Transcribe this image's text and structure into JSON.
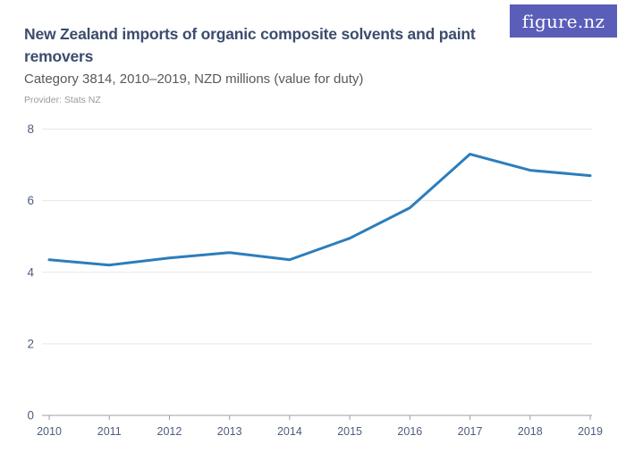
{
  "header": {
    "title": "New Zealand imports of organic composite solvents and paint removers",
    "subtitle": "Category 3814, 2010–2019, NZD millions (value for duty)",
    "provider": "Provider: Stats NZ",
    "logo_text": "figure.nz"
  },
  "colors": {
    "title_text": "#3c4c6d",
    "subtitle_text": "#595959",
    "provider_text": "#9a9a9a",
    "logo_bg": "#5a5eb9",
    "logo_text": "#ffffff",
    "line": "#2d7dbb",
    "grid": "#e7e7e7",
    "axis": "#9aa0a6",
    "tick_label": "#4e5d7d"
  },
  "chart_data": {
    "type": "line",
    "title": "New Zealand imports of organic composite solvents and paint removers",
    "subtitle": "Category 3814, 2010–2019, NZD millions (value for duty)",
    "x": [
      2010,
      2011,
      2012,
      2013,
      2014,
      2015,
      2016,
      2017,
      2018,
      2019
    ],
    "values": [
      4.35,
      4.2,
      4.4,
      4.55,
      4.35,
      4.95,
      5.8,
      7.3,
      6.85,
      6.7
    ],
    "xlabel": "",
    "ylabel": "NZD millions (value for duty)",
    "ylim": [
      0,
      8
    ],
    "yticks": [
      0,
      2,
      4,
      6,
      8
    ],
    "grid": "horizontal",
    "legend": "none",
    "line_width": 3
  }
}
